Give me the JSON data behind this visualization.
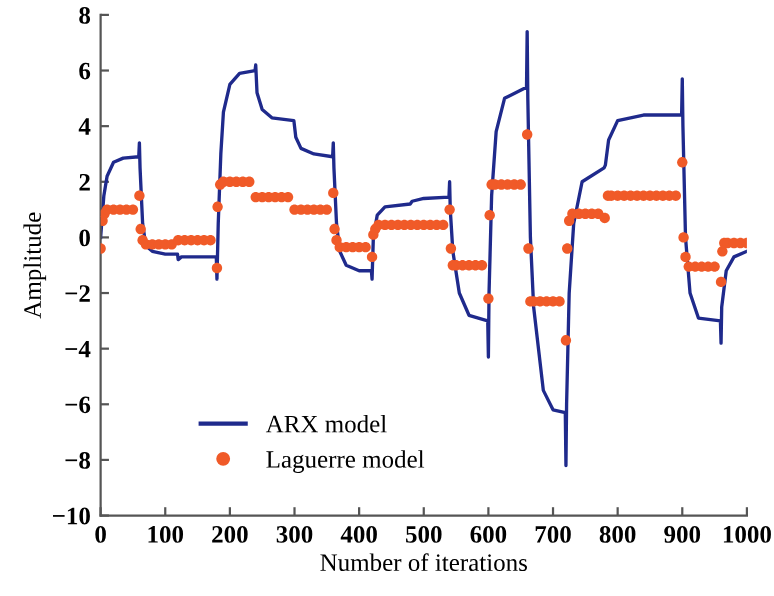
{
  "chart_data": {
    "type": "line",
    "xlabel": "Number of iterations",
    "ylabel": "Amplitude",
    "xlim": [
      0,
      1000
    ],
    "xticks": [
      0,
      100,
      200,
      300,
      400,
      500,
      600,
      700,
      800,
      900,
      1000
    ],
    "ylim": [
      -10,
      8
    ],
    "yticks": [
      -10,
      -8,
      -6,
      -4,
      -2,
      0,
      2,
      4,
      6,
      8
    ],
    "grid": false,
    "legend": "lower left",
    "series": [
      {
        "name": "ARX model",
        "color": "#1f2a8c",
        "marker": "none",
        "line_style": "solid",
        "x": [
          0,
          5,
          10,
          20,
          35,
          59,
          60,
          61,
          65,
          70,
          80,
          100,
          119,
          120,
          125,
          179,
          180,
          182,
          186,
          190,
          200,
          215,
          239,
          240,
          242,
          250,
          265,
          299,
          302,
          310,
          330,
          359,
          360,
          361,
          365,
          370,
          380,
          400,
          419,
          420,
          422,
          428,
          440,
          479,
          482,
          500,
          539,
          540,
          541,
          545,
          555,
          570,
          599,
          600,
          601,
          605,
          612,
          625,
          659,
          660,
          661,
          665,
          670,
          685,
          700,
          719,
          720,
          721,
          725,
          732,
          745,
          779,
          781,
          786,
          800,
          840,
          899,
          900,
          901,
          905,
          912,
          925,
          959,
          960,
          961,
          968,
          980,
          1000
        ],
        "values": [
          0,
          1.5,
          2.2,
          2.7,
          2.85,
          2.9,
          3.4,
          2.5,
          0.5,
          -0.3,
          -0.5,
          -0.6,
          -0.6,
          -0.8,
          -0.7,
          -0.7,
          -1.5,
          0.5,
          3,
          4.5,
          5.5,
          5.9,
          6.0,
          6.2,
          5.2,
          4.6,
          4.3,
          4.2,
          3.6,
          3.2,
          3.0,
          2.9,
          3.4,
          2.5,
          0.5,
          -0.5,
          -1.0,
          -1.2,
          -1.2,
          -1.5,
          0,
          0.8,
          1.1,
          1.2,
          1.3,
          1.4,
          1.45,
          2.0,
          1.0,
          -0.5,
          -2.0,
          -2.8,
          -3.0,
          -4.3,
          -2,
          1.5,
          3.8,
          5.0,
          5.4,
          7.4,
          5,
          0,
          -2.5,
          -5.5,
          -6.2,
          -6.3,
          -8.2,
          -6,
          -2,
          0.5,
          2.0,
          2.5,
          2.6,
          3.5,
          4.2,
          4.4,
          4.4,
          5.7,
          4.0,
          0,
          -2,
          -2.9,
          -3.0,
          -3.8,
          -2.5,
          -1.2,
          -0.7,
          -0.5
        ]
      },
      {
        "name": "Laguerre model",
        "type": "scatter",
        "color": "#f05a28",
        "marker": "circle",
        "x": [
          0,
          3,
          6,
          10,
          20,
          30,
          40,
          50,
          60,
          62,
          65,
          70,
          80,
          90,
          100,
          110,
          120,
          130,
          140,
          150,
          160,
          170,
          180,
          181,
          185,
          190,
          200,
          210,
          220,
          230,
          240,
          250,
          260,
          270,
          280,
          290,
          300,
          310,
          320,
          330,
          340,
          350,
          360,
          362,
          365,
          370,
          380,
          390,
          400,
          410,
          420,
          422,
          425,
          430,
          440,
          450,
          460,
          470,
          480,
          490,
          500,
          510,
          520,
          530,
          540,
          542,
          545,
          550,
          560,
          570,
          580,
          590,
          600,
          602,
          605,
          610,
          620,
          630,
          640,
          650,
          660,
          662,
          665,
          670,
          680,
          690,
          700,
          710,
          720,
          722,
          725,
          730,
          740,
          750,
          760,
          770,
          780,
          785,
          790,
          800,
          810,
          820,
          830,
          840,
          850,
          860,
          870,
          880,
          890,
          900,
          902,
          905,
          910,
          920,
          930,
          940,
          950,
          960,
          962,
          965,
          970,
          980,
          990,
          1000
        ],
        "values": [
          -0.4,
          0.6,
          0.85,
          1.0,
          1.0,
          1.0,
          1.0,
          1.0,
          1.5,
          0.3,
          -0.1,
          -0.25,
          -0.25,
          -0.25,
          -0.25,
          -0.25,
          -0.1,
          -0.1,
          -0.1,
          -0.1,
          -0.1,
          -0.1,
          -1.1,
          1.1,
          1.9,
          2.0,
          2.0,
          2.0,
          2.0,
          2.0,
          1.45,
          1.45,
          1.45,
          1.45,
          1.45,
          1.45,
          1.0,
          1.0,
          1.0,
          1.0,
          1.0,
          1.0,
          1.6,
          0.3,
          -0.1,
          -0.35,
          -0.35,
          -0.35,
          -0.35,
          -0.35,
          -0.7,
          0.1,
          0.3,
          0.45,
          0.45,
          0.45,
          0.45,
          0.45,
          0.45,
          0.45,
          0.45,
          0.45,
          0.45,
          0.45,
          1.0,
          -0.4,
          -1.0,
          -1.0,
          -1.0,
          -1.0,
          -1.0,
          -1.0,
          -2.2,
          0.8,
          1.9,
          1.9,
          1.9,
          1.9,
          1.9,
          1.9,
          3.7,
          -0.4,
          -2.3,
          -2.3,
          -2.3,
          -2.3,
          -2.3,
          -2.3,
          -3.7,
          -0.4,
          0.6,
          0.85,
          0.85,
          0.85,
          0.85,
          0.85,
          0.7,
          1.5,
          1.5,
          1.5,
          1.5,
          1.5,
          1.5,
          1.5,
          1.5,
          1.5,
          1.5,
          1.5,
          1.5,
          2.7,
          0,
          -0.7,
          -1.05,
          -1.05,
          -1.05,
          -1.05,
          -1.05,
          -1.6,
          -0.5,
          -0.2,
          -0.2,
          -0.2,
          -0.2,
          -0.2
        ]
      }
    ]
  }
}
